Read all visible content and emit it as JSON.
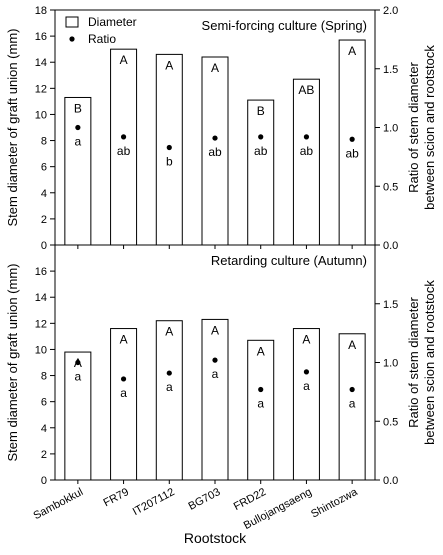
{
  "chart_data": [
    {
      "type": "bar",
      "title": "Semi-forcing culture (Spring)",
      "categories": [
        "Sambokkul",
        "FR79",
        "IT207112",
        "BG703",
        "FRD22",
        "Bullojangsaeng",
        "Shintozwa"
      ],
      "series": [
        {
          "name": "Diameter",
          "axis": "left",
          "values": [
            11.3,
            15.0,
            14.6,
            14.4,
            11.1,
            12.7,
            15.7
          ],
          "letters": [
            "B",
            "A",
            "A",
            "A",
            "B",
            "AB",
            "A"
          ]
        },
        {
          "name": "Ratio",
          "axis": "right",
          "marker": "dot",
          "values": [
            1.0,
            0.92,
            0.83,
            0.91,
            0.92,
            0.92,
            0.9
          ],
          "letters": [
            "a",
            "ab",
            "b",
            "ab",
            "ab",
            "ab",
            "ab"
          ]
        }
      ],
      "ylabel": "Stem diameter of graft union (mm)",
      "ylim": [
        0,
        18
      ],
      "yticks": [
        "0",
        "2",
        "4",
        "6",
        "8",
        "10",
        "12",
        "14",
        "16",
        "18"
      ],
      "y2label": [
        "Ratio of stem diameter",
        "between scion and rootstock"
      ],
      "y2lim": [
        0,
        2.0
      ],
      "y2ticks": [
        "0.0",
        "0.5",
        "1.0",
        "1.5",
        "2.0"
      ],
      "legend_position": "top-left"
    },
    {
      "type": "bar",
      "title": "Retarding culture (Autumn)",
      "categories": [
        "Sambokkul",
        "FR79",
        "IT207112",
        "BG703",
        "FRD22",
        "Bullojangsaeng",
        "Shintozwa"
      ],
      "series": [
        {
          "name": "Diameter",
          "axis": "left",
          "values": [
            9.8,
            11.6,
            12.2,
            12.3,
            10.7,
            11.6,
            11.2
          ],
          "letters": [
            "A",
            "A",
            "A",
            "A",
            "A",
            "A",
            "A"
          ]
        },
        {
          "name": "Ratio",
          "axis": "right",
          "marker": "dot",
          "values": [
            1.0,
            0.86,
            0.91,
            1.02,
            0.77,
            0.92,
            0.77
          ],
          "letters": [
            "a",
            "a",
            "a",
            "a",
            "a",
            "a",
            "a"
          ]
        }
      ],
      "ylabel": "Stem diameter of graft union (mm)",
      "ylim": [
        0,
        18
      ],
      "yticks": [
        "0",
        "2",
        "4",
        "6",
        "8",
        "10",
        "12",
        "14",
        "16"
      ],
      "y2label": [
        "Ratio of stem diameter",
        "between scion and rootstock"
      ],
      "y2lim": [
        0,
        2.0
      ],
      "y2ticks": [
        "0.0",
        "0.5",
        "1.0",
        "1.5"
      ],
      "xlabel": "Rootstock"
    }
  ],
  "legend": {
    "diameter": "Diameter",
    "ratio": "Ratio"
  },
  "colors": {
    "bar_fill": "#ffffff",
    "stroke": "#000000"
  }
}
